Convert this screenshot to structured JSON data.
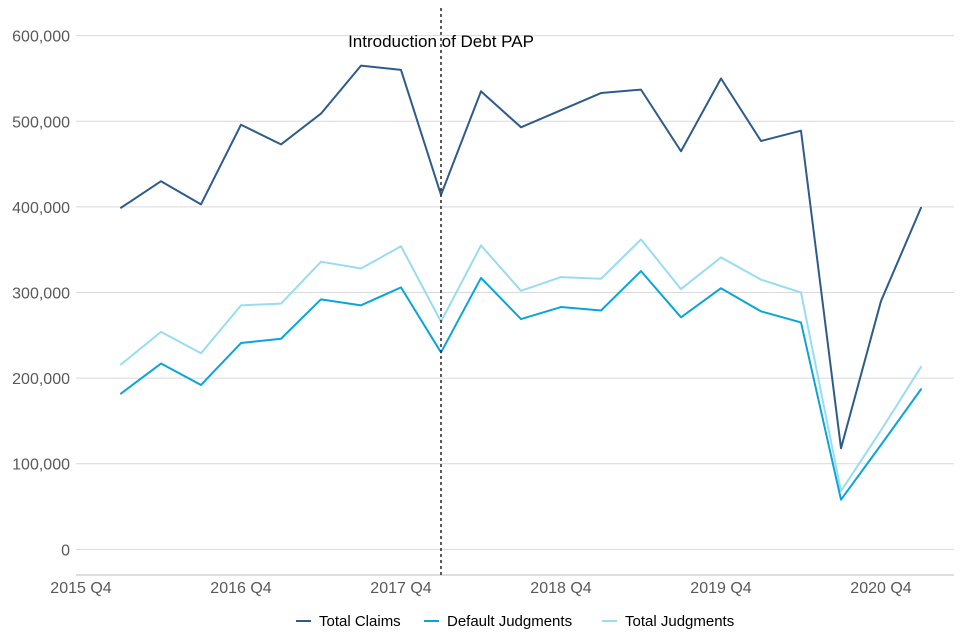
{
  "chart_data": {
    "type": "line",
    "title": "",
    "xlabel": "",
    "ylabel": "",
    "ylim": [
      -30000,
      630000
    ],
    "grid": true,
    "legend_position": "bottom-center",
    "x_tick_labels": [
      "2015 Q4",
      "2016 Q4",
      "2017 Q4",
      "2018 Q4",
      "2019 Q4",
      "2020 Q4"
    ],
    "y_ticks": [
      0,
      100000,
      200000,
      300000,
      400000,
      500000,
      600000
    ],
    "y_tick_labels": [
      "0",
      "100,000",
      "200,000",
      "300,000",
      "400,000",
      "500,000",
      "600,000"
    ],
    "x": [
      "2016 Q1",
      "2016 Q2",
      "2016 Q3",
      "2016 Q4",
      "2017 Q1",
      "2017 Q2",
      "2017 Q3",
      "2017 Q4",
      "2018 Q1",
      "2018 Q2",
      "2018 Q3",
      "2018 Q4",
      "2019 Q1",
      "2019 Q2",
      "2019 Q3",
      "2019 Q4",
      "2020 Q1",
      "2020 Q2",
      "2020 Q3",
      "2020 Q4",
      "2021 Q1"
    ],
    "series": [
      {
        "name": "Total Claims",
        "color": "#2e5c8a",
        "values": [
          399000,
          430000,
          403000,
          496000,
          473000,
          509000,
          565000,
          560000,
          414000,
          535000,
          493000,
          513000,
          533000,
          537000,
          465000,
          550000,
          477000,
          489000,
          118000,
          290000,
          399000
        ]
      },
      {
        "name": "Default Judgments",
        "color": "#0aa5d8",
        "values": [
          182000,
          217000,
          192000,
          241000,
          246000,
          292000,
          285000,
          306000,
          230000,
          317000,
          269000,
          283000,
          279000,
          325000,
          271000,
          305000,
          278000,
          265000,
          58000,
          122000,
          187000
        ]
      },
      {
        "name": "Total Judgments",
        "color": "#99dcf2",
        "values": [
          216000,
          254000,
          229000,
          285000,
          287000,
          336000,
          328000,
          354000,
          266000,
          355000,
          302000,
          318000,
          316000,
          362000,
          304000,
          341000,
          315000,
          300000,
          68000,
          139000,
          213000
        ]
      }
    ],
    "annotation": {
      "label": "Introduction of Debt PAP",
      "x": "2018 Q1",
      "line_style": "dotted",
      "color": "#333333"
    },
    "colors": {
      "grid": "#d9d9d9",
      "axis": "#bfbfbf",
      "tick_text": "#595959"
    }
  }
}
